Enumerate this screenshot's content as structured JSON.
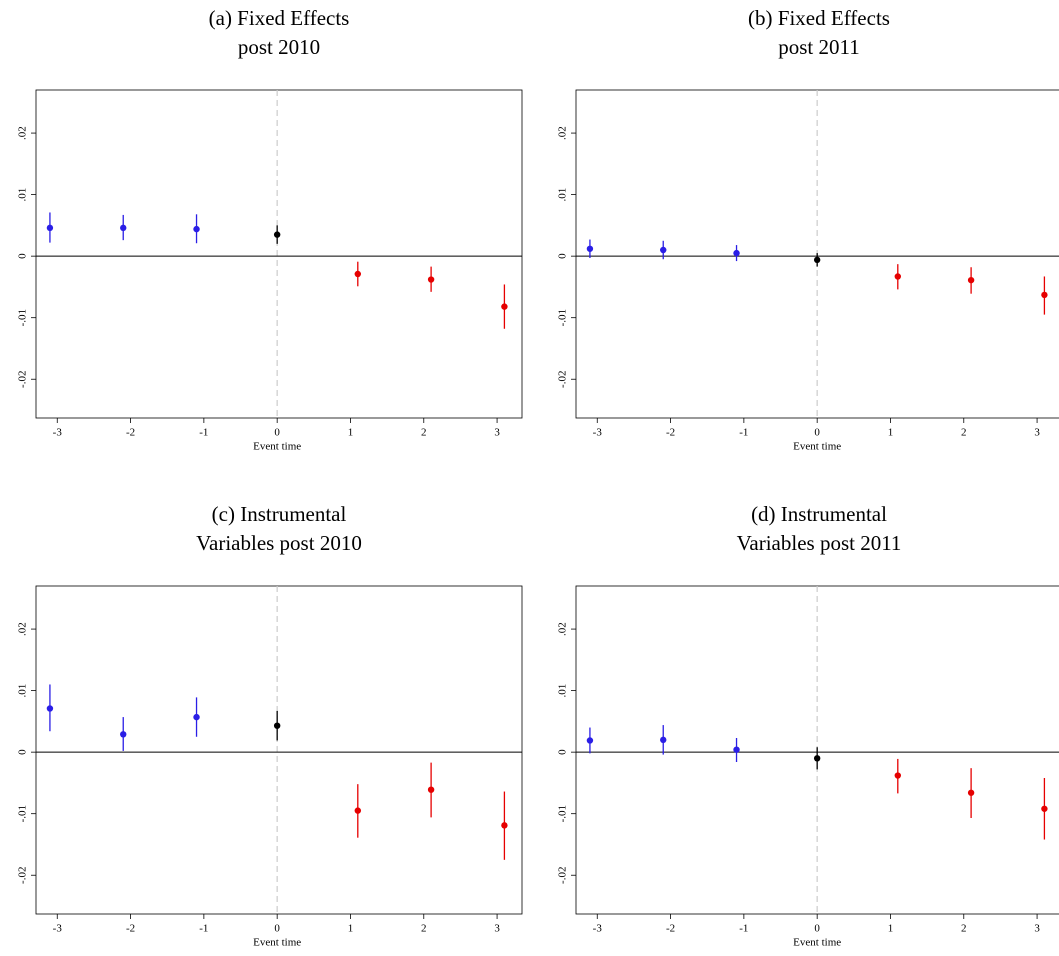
{
  "chart_data": [
    {
      "type": "scatter",
      "title": [
        "(a) Fixed Effects",
        "post 2010"
      ],
      "x_label": "Event time",
      "x": [
        -3.1,
        -2.1,
        -1.1,
        0,
        1.1,
        2.1,
        3.1
      ],
      "values": [
        0.0046,
        0.0046,
        0.0044,
        0.0035,
        -0.0029,
        -0.0038,
        -0.0082
      ],
      "lower": [
        0.0022,
        0.0026,
        0.0021,
        0.002,
        -0.0049,
        -0.0058,
        -0.0118
      ],
      "upper": [
        0.0071,
        0.0067,
        0.0068,
        0.005,
        -0.0009,
        -0.0017,
        -0.0046
      ],
      "colors": [
        "#2a1ee6",
        "#2a1ee6",
        "#2a1ee6",
        "#000000",
        "#e60000",
        "#e60000",
        "#e60000"
      ],
      "xlim": [
        -3.29,
        3.34
      ],
      "ylim": [
        -0.0263,
        0.027
      ],
      "xticks": [
        -3,
        -2,
        -1,
        0,
        1,
        2,
        3
      ],
      "yticks": [
        {
          "value": -0.02,
          "label": "-.02"
        },
        {
          "value": -0.01,
          "label": "-.01"
        },
        0,
        {
          "value": 0.01,
          "label": ".01"
        },
        {
          "value": 0.02,
          "label": ".02"
        }
      ],
      "hline": 0,
      "vline": 0
    },
    {
      "type": "scatter",
      "title": [
        "(b) Fixed Effects",
        "post 2011"
      ],
      "x_label": "Event time",
      "x": [
        -3.1,
        -2.1,
        -1.1,
        0,
        1.1,
        2.1,
        3.1
      ],
      "values": [
        0.0012,
        0.001,
        0.0005,
        -0.0006,
        -0.0033,
        -0.0039,
        -0.0063
      ],
      "lower": [
        -0.0003,
        -0.0005,
        -0.0008,
        -0.0017,
        -0.0054,
        -0.0061,
        -0.0095
      ],
      "upper": [
        0.0027,
        0.0025,
        0.0018,
        0.0005,
        -0.0013,
        -0.0018,
        -0.0033
      ],
      "colors": [
        "#2a1ee6",
        "#2a1ee6",
        "#2a1ee6",
        "#000000",
        "#e60000",
        "#e60000",
        "#e60000"
      ],
      "xlim": [
        -3.29,
        3.34
      ],
      "ylim": [
        -0.0263,
        0.027
      ],
      "xticks": [
        -3,
        -2,
        -1,
        0,
        1,
        2,
        3
      ],
      "yticks": [
        {
          "value": -0.02,
          "label": "-.02"
        },
        {
          "value": -0.01,
          "label": "-.01"
        },
        0,
        {
          "value": 0.01,
          "label": ".01"
        },
        {
          "value": 0.02,
          "label": ".02"
        }
      ],
      "hline": 0,
      "vline": 0
    },
    {
      "type": "scatter",
      "title": [
        "(c) Instrumental",
        "Variables post 2010"
      ],
      "x_label": "Event time",
      "x": [
        -3.1,
        -2.1,
        -1.1,
        0,
        1.1,
        2.1,
        3.1
      ],
      "values": [
        0.0071,
        0.0029,
        0.0057,
        0.0043,
        -0.0095,
        -0.0061,
        -0.0119
      ],
      "lower": [
        0.0034,
        0.0002,
        0.0025,
        0.0019,
        -0.0139,
        -0.0106,
        -0.0175
      ],
      "upper": [
        0.011,
        0.0057,
        0.0089,
        0.0067,
        -0.0052,
        -0.0017,
        -0.0064
      ],
      "colors": [
        "#2a1ee6",
        "#2a1ee6",
        "#2a1ee6",
        "#000000",
        "#e60000",
        "#e60000",
        "#e60000"
      ],
      "xlim": [
        -3.29,
        3.34
      ],
      "ylim": [
        -0.0263,
        0.027
      ],
      "xticks": [
        -3,
        -2,
        -1,
        0,
        1,
        2,
        3
      ],
      "yticks": [
        {
          "value": -0.02,
          "label": "-.02"
        },
        {
          "value": -0.01,
          "label": "-.01"
        },
        0,
        {
          "value": 0.01,
          "label": ".01"
        },
        {
          "value": 0.02,
          "label": ".02"
        }
      ],
      "hline": 0,
      "vline": 0
    },
    {
      "type": "scatter",
      "title": [
        "(d) Instrumental",
        "Variables post 2011"
      ],
      "x_label": "Event time",
      "x": [
        -3.1,
        -2.1,
        -1.1,
        0,
        1.1,
        2.1,
        3.1
      ],
      "values": [
        0.0019,
        0.002,
        0.0004,
        -0.001,
        -0.0038,
        -0.0066,
        -0.0092
      ],
      "lower": [
        -0.0002,
        -0.0004,
        -0.0016,
        -0.0028,
        -0.0067,
        -0.0107,
        -0.0142
      ],
      "upper": [
        0.004,
        0.0044,
        0.0023,
        0.0008,
        -0.0011,
        -0.0026,
        -0.0042
      ],
      "colors": [
        "#2a1ee6",
        "#2a1ee6",
        "#2a1ee6",
        "#000000",
        "#e60000",
        "#e60000",
        "#e60000"
      ],
      "xlim": [
        -3.29,
        3.34
      ],
      "ylim": [
        -0.0263,
        0.027
      ],
      "xticks": [
        -3,
        -2,
        -1,
        0,
        1,
        2,
        3
      ],
      "yticks": [
        {
          "value": -0.02,
          "label": "-.02"
        },
        {
          "value": -0.01,
          "label": "-.01"
        },
        0,
        {
          "value": 0.01,
          "label": ".01"
        },
        {
          "value": 0.02,
          "label": ".02"
        }
      ],
      "hline": 0,
      "vline": 0
    }
  ]
}
